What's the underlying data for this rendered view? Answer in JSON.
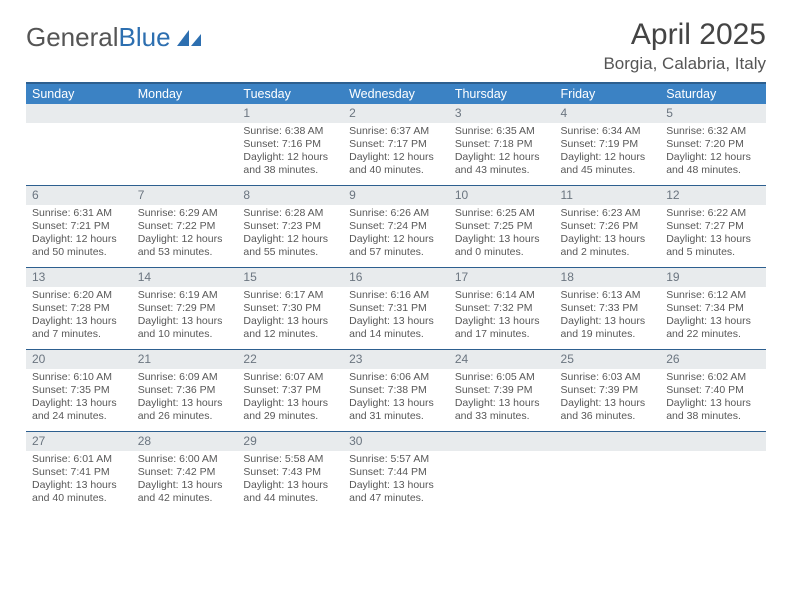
{
  "logo": {
    "textGrey": "General",
    "textBlue": "Blue"
  },
  "header": {
    "monthTitle": "April 2025",
    "location": "Borgia, Calabria, Italy"
  },
  "colors": {
    "headerBlue": "#3b82c4",
    "rowSeparator": "#2d5f8f",
    "dayNumBg": "#e8ebed",
    "text": "#333333",
    "muted": "#585858",
    "background": "#ffffff"
  },
  "typography": {
    "monthTitle_fontsize": 30,
    "location_fontsize": 17,
    "dayHeader_fontsize": 12.5,
    "dayNum_fontsize": 12,
    "body_fontsize": 10.5
  },
  "dayNames": [
    "Sunday",
    "Monday",
    "Tuesday",
    "Wednesday",
    "Thursday",
    "Friday",
    "Saturday"
  ],
  "weeks": [
    [
      null,
      null,
      {
        "n": "1",
        "sr": "Sunrise: 6:38 AM",
        "ss": "Sunset: 7:16 PM",
        "dl": "Daylight: 12 hours and 38 minutes."
      },
      {
        "n": "2",
        "sr": "Sunrise: 6:37 AM",
        "ss": "Sunset: 7:17 PM",
        "dl": "Daylight: 12 hours and 40 minutes."
      },
      {
        "n": "3",
        "sr": "Sunrise: 6:35 AM",
        "ss": "Sunset: 7:18 PM",
        "dl": "Daylight: 12 hours and 43 minutes."
      },
      {
        "n": "4",
        "sr": "Sunrise: 6:34 AM",
        "ss": "Sunset: 7:19 PM",
        "dl": "Daylight: 12 hours and 45 minutes."
      },
      {
        "n": "5",
        "sr": "Sunrise: 6:32 AM",
        "ss": "Sunset: 7:20 PM",
        "dl": "Daylight: 12 hours and 48 minutes."
      }
    ],
    [
      {
        "n": "6",
        "sr": "Sunrise: 6:31 AM",
        "ss": "Sunset: 7:21 PM",
        "dl": "Daylight: 12 hours and 50 minutes."
      },
      {
        "n": "7",
        "sr": "Sunrise: 6:29 AM",
        "ss": "Sunset: 7:22 PM",
        "dl": "Daylight: 12 hours and 53 minutes."
      },
      {
        "n": "8",
        "sr": "Sunrise: 6:28 AM",
        "ss": "Sunset: 7:23 PM",
        "dl": "Daylight: 12 hours and 55 minutes."
      },
      {
        "n": "9",
        "sr": "Sunrise: 6:26 AM",
        "ss": "Sunset: 7:24 PM",
        "dl": "Daylight: 12 hours and 57 minutes."
      },
      {
        "n": "10",
        "sr": "Sunrise: 6:25 AM",
        "ss": "Sunset: 7:25 PM",
        "dl": "Daylight: 13 hours and 0 minutes."
      },
      {
        "n": "11",
        "sr": "Sunrise: 6:23 AM",
        "ss": "Sunset: 7:26 PM",
        "dl": "Daylight: 13 hours and 2 minutes."
      },
      {
        "n": "12",
        "sr": "Sunrise: 6:22 AM",
        "ss": "Sunset: 7:27 PM",
        "dl": "Daylight: 13 hours and 5 minutes."
      }
    ],
    [
      {
        "n": "13",
        "sr": "Sunrise: 6:20 AM",
        "ss": "Sunset: 7:28 PM",
        "dl": "Daylight: 13 hours and 7 minutes."
      },
      {
        "n": "14",
        "sr": "Sunrise: 6:19 AM",
        "ss": "Sunset: 7:29 PM",
        "dl": "Daylight: 13 hours and 10 minutes."
      },
      {
        "n": "15",
        "sr": "Sunrise: 6:17 AM",
        "ss": "Sunset: 7:30 PM",
        "dl": "Daylight: 13 hours and 12 minutes."
      },
      {
        "n": "16",
        "sr": "Sunrise: 6:16 AM",
        "ss": "Sunset: 7:31 PM",
        "dl": "Daylight: 13 hours and 14 minutes."
      },
      {
        "n": "17",
        "sr": "Sunrise: 6:14 AM",
        "ss": "Sunset: 7:32 PM",
        "dl": "Daylight: 13 hours and 17 minutes."
      },
      {
        "n": "18",
        "sr": "Sunrise: 6:13 AM",
        "ss": "Sunset: 7:33 PM",
        "dl": "Daylight: 13 hours and 19 minutes."
      },
      {
        "n": "19",
        "sr": "Sunrise: 6:12 AM",
        "ss": "Sunset: 7:34 PM",
        "dl": "Daylight: 13 hours and 22 minutes."
      }
    ],
    [
      {
        "n": "20",
        "sr": "Sunrise: 6:10 AM",
        "ss": "Sunset: 7:35 PM",
        "dl": "Daylight: 13 hours and 24 minutes."
      },
      {
        "n": "21",
        "sr": "Sunrise: 6:09 AM",
        "ss": "Sunset: 7:36 PM",
        "dl": "Daylight: 13 hours and 26 minutes."
      },
      {
        "n": "22",
        "sr": "Sunrise: 6:07 AM",
        "ss": "Sunset: 7:37 PM",
        "dl": "Daylight: 13 hours and 29 minutes."
      },
      {
        "n": "23",
        "sr": "Sunrise: 6:06 AM",
        "ss": "Sunset: 7:38 PM",
        "dl": "Daylight: 13 hours and 31 minutes."
      },
      {
        "n": "24",
        "sr": "Sunrise: 6:05 AM",
        "ss": "Sunset: 7:39 PM",
        "dl": "Daylight: 13 hours and 33 minutes."
      },
      {
        "n": "25",
        "sr": "Sunrise: 6:03 AM",
        "ss": "Sunset: 7:39 PM",
        "dl": "Daylight: 13 hours and 36 minutes."
      },
      {
        "n": "26",
        "sr": "Sunrise: 6:02 AM",
        "ss": "Sunset: 7:40 PM",
        "dl": "Daylight: 13 hours and 38 minutes."
      }
    ],
    [
      {
        "n": "27",
        "sr": "Sunrise: 6:01 AM",
        "ss": "Sunset: 7:41 PM",
        "dl": "Daylight: 13 hours and 40 minutes."
      },
      {
        "n": "28",
        "sr": "Sunrise: 6:00 AM",
        "ss": "Sunset: 7:42 PM",
        "dl": "Daylight: 13 hours and 42 minutes."
      },
      {
        "n": "29",
        "sr": "Sunrise: 5:58 AM",
        "ss": "Sunset: 7:43 PM",
        "dl": "Daylight: 13 hours and 44 minutes."
      },
      {
        "n": "30",
        "sr": "Sunrise: 5:57 AM",
        "ss": "Sunset: 7:44 PM",
        "dl": "Daylight: 13 hours and 47 minutes."
      },
      null,
      null,
      null
    ]
  ]
}
